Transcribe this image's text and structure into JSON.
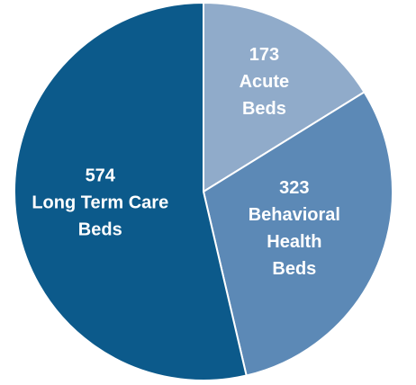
{
  "chart_data": {
    "type": "pie",
    "categories": [
      [
        "Acute",
        "Beds"
      ],
      [
        "Behavioral",
        "Health",
        "Beds"
      ],
      [
        "Long Term Care",
        "Beds"
      ]
    ],
    "values": [
      173,
      323,
      574
    ],
    "colors": [
      "#90abca",
      "#5c89b6",
      "#0c5a8b"
    ]
  }
}
